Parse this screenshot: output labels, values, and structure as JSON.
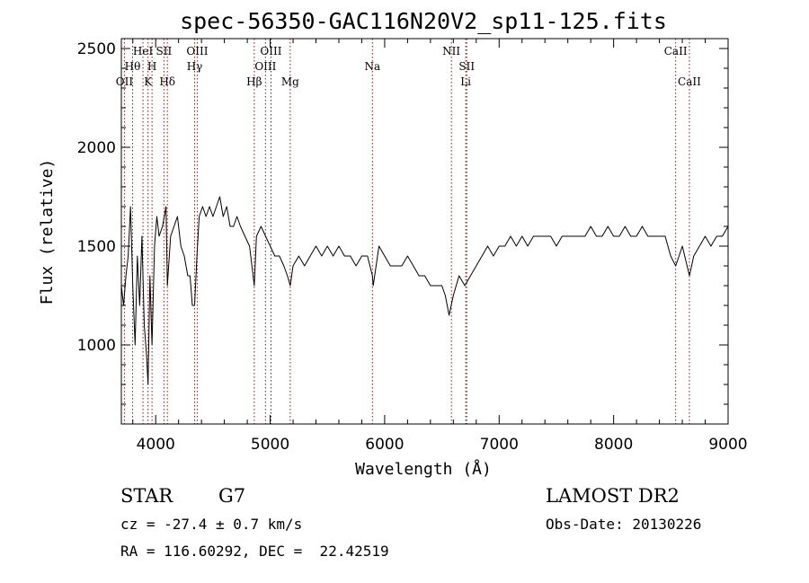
{
  "chart_data": {
    "type": "line",
    "title": "spec-56350-GAC116N20V2_sp11-125.fits",
    "xlabel": "Wavelength (Å)",
    "ylabel": "Flux (relative)",
    "xlim": [
      3700,
      9000
    ],
    "ylim": [
      600,
      2550
    ],
    "x_ticks": [
      4000,
      5000,
      6000,
      7000,
      8000,
      9000
    ],
    "y_ticks": [
      1000,
      1500,
      2000,
      2500
    ],
    "x_tick_labels": [
      "4000",
      "5000",
      "6000",
      "7000",
      "8000",
      "9000"
    ],
    "y_tick_labels": [
      "1000",
      "1500",
      "2000",
      "2500"
    ],
    "grid": false,
    "series": [
      {
        "x": [
          3700,
          3720,
          3740,
          3760,
          3780,
          3800,
          3820,
          3840,
          3860,
          3880,
          3900,
          3920,
          3933,
          3950,
          3968,
          3990,
          4010,
          4030,
          4060,
          4090,
          4102,
          4130,
          4160,
          4190,
          4220,
          4250,
          4280,
          4300,
          4320,
          4340,
          4360,
          4380,
          4410,
          4440,
          4470,
          4500,
          4530,
          4560,
          4590,
          4620,
          4650,
          4680,
          4710,
          4740,
          4780,
          4820,
          4861,
          4880,
          4920,
          4960,
          5000,
          5040,
          5080,
          5120,
          5150,
          5175,
          5200,
          5250,
          5300,
          5350,
          5400,
          5450,
          5500,
          5550,
          5600,
          5650,
          5700,
          5750,
          5800,
          5850,
          5893,
          5900,
          5950,
          6000,
          6050,
          6100,
          6150,
          6200,
          6250,
          6300,
          6350,
          6400,
          6450,
          6500,
          6530,
          6563,
          6600,
          6650,
          6700,
          6750,
          6800,
          6850,
          6900,
          6950,
          7000,
          7050,
          7100,
          7150,
          7200,
          7250,
          7300,
          7350,
          7400,
          7450,
          7500,
          7550,
          7600,
          7650,
          7700,
          7750,
          7800,
          7850,
          7900,
          7950,
          8000,
          8050,
          8100,
          8150,
          8200,
          8250,
          8300,
          8350,
          8400,
          8450,
          8498,
          8542,
          8600,
          8662,
          8700,
          8750,
          8800,
          8850,
          8900,
          8950,
          9000
        ],
        "y": [
          1300,
          1200,
          1350,
          1450,
          1700,
          1300,
          1000,
          1450,
          1200,
          1550,
          1100,
          950,
          800,
          1350,
          1000,
          1500,
          1650,
          1550,
          1600,
          1700,
          1300,
          1550,
          1600,
          1650,
          1500,
          1450,
          1350,
          1350,
          1200,
          1200,
          1450,
          1650,
          1700,
          1650,
          1700,
          1650,
          1700,
          1750,
          1650,
          1700,
          1600,
          1600,
          1650,
          1600,
          1550,
          1500,
          1300,
          1550,
          1600,
          1550,
          1500,
          1450,
          1450,
          1400,
          1350,
          1300,
          1400,
          1450,
          1400,
          1450,
          1500,
          1450,
          1500,
          1450,
          1500,
          1450,
          1450,
          1400,
          1450,
          1450,
          1350,
          1300,
          1500,
          1450,
          1400,
          1400,
          1400,
          1450,
          1400,
          1350,
          1350,
          1300,
          1300,
          1300,
          1250,
          1150,
          1250,
          1350,
          1300,
          1350,
          1400,
          1450,
          1500,
          1450,
          1500,
          1500,
          1550,
          1500,
          1550,
          1500,
          1550,
          1550,
          1550,
          1550,
          1500,
          1550,
          1550,
          1550,
          1550,
          1550,
          1600,
          1550,
          1550,
          1600,
          1550,
          1550,
          1600,
          1550,
          1550,
          1600,
          1550,
          1550,
          1550,
          1550,
          1450,
          1400,
          1500,
          1350,
          1450,
          1500,
          1550,
          1500,
          1550,
          1550,
          1600
        ]
      }
    ],
    "line_labels": [
      {
        "x": 3727,
        "row": 3,
        "text": "OII"
      },
      {
        "x": 3798,
        "row": 2,
        "text": "Hθ"
      },
      {
        "x": 3889,
        "row": 1,
        "text": "HeI"
      },
      {
        "x": 3933,
        "row": 3,
        "text": "K"
      },
      {
        "x": 3968,
        "row": 2,
        "text": "H"
      },
      {
        "x": 4072,
        "row": 1,
        "text": "SII"
      },
      {
        "x": 4102,
        "row": 3,
        "text": "Hδ"
      },
      {
        "x": 4340,
        "row": 2,
        "text": "Hγ"
      },
      {
        "x": 4363,
        "row": 1,
        "text": "OIII"
      },
      {
        "x": 4861,
        "row": 3,
        "text": "Hβ"
      },
      {
        "x": 4959,
        "row": 2,
        "text": "OIII"
      },
      {
        "x": 5007,
        "row": 1,
        "text": "OIII"
      },
      {
        "x": 5175,
        "row": 3,
        "text": "Mg"
      },
      {
        "x": 5893,
        "row": 2,
        "text": "Na"
      },
      {
        "x": 6583,
        "row": 1,
        "text": "NII"
      },
      {
        "x": 6717,
        "row": 2,
        "text": "SII"
      },
      {
        "x": 6708,
        "row": 3,
        "text": "Li"
      },
      {
        "x": 8542,
        "row": 1,
        "text": "CaII"
      },
      {
        "x": 8662,
        "row": 3,
        "text": "CaII"
      }
    ],
    "line_markers": [
      3727,
      3798,
      3889,
      3933,
      3968,
      4072,
      4102,
      4340,
      4363,
      4861,
      4959,
      5007,
      5175,
      5893,
      6583,
      6708,
      6717,
      8542,
      8662
    ]
  },
  "info": {
    "object_class": "STAR",
    "subclass": "G7",
    "cz": "cz = -27.4 ± 0.7 km/s",
    "radec": "RA = 116.60292, DEC =  22.42519",
    "survey": "LAMOST DR2",
    "obs_date": "Obs-Date: 20130226"
  },
  "colors": {
    "spectrum": "#000000",
    "line_marker": "#c00000",
    "axes": "#000000"
  }
}
